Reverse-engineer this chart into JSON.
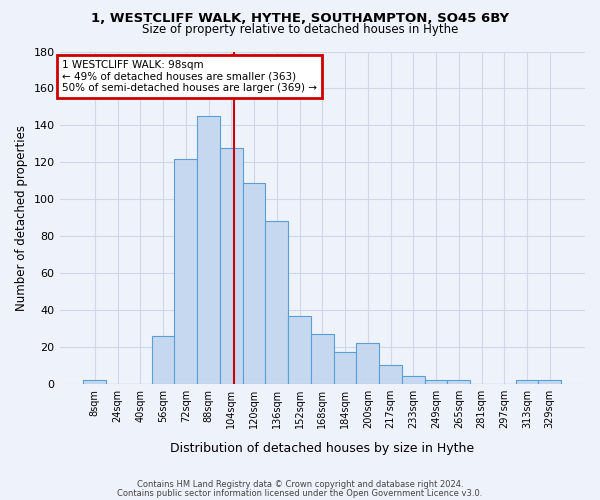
{
  "title": "1, WESTCLIFF WALK, HYTHE, SOUTHAMPTON, SO45 6BY",
  "subtitle": "Size of property relative to detached houses in Hythe",
  "xlabel": "Distribution of detached houses by size in Hythe",
  "ylabel": "Number of detached properties",
  "bin_labels": [
    "8sqm",
    "24sqm",
    "40sqm",
    "56sqm",
    "72sqm",
    "88sqm",
    "104sqm",
    "120sqm",
    "136sqm",
    "152sqm",
    "168sqm",
    "184sqm",
    "200sqm",
    "217sqm",
    "233sqm",
    "249sqm",
    "265sqm",
    "281sqm",
    "297sqm",
    "313sqm",
    "329sqm"
  ],
  "bin_values": [
    2,
    0,
    0,
    26,
    122,
    145,
    128,
    109,
    88,
    37,
    27,
    17,
    22,
    10,
    4,
    2,
    2,
    0,
    0,
    2,
    2
  ],
  "bar_color": "#c5d8f0",
  "bar_edge_color": "#5a9fd4",
  "red_line_color": "#cc0000",
  "annotation_box_color": "#cc0000",
  "annotation_line1": "1 WESTCLIFF WALK: 98sqm",
  "annotation_line2": "← 49% of detached houses are smaller (363)",
  "annotation_line3": "50% of semi-detached houses are larger (369) →",
  "ylim": [
    0,
    180
  ],
  "yticks": [
    0,
    20,
    40,
    60,
    80,
    100,
    120,
    140,
    160,
    180
  ],
  "footnote1": "Contains HM Land Registry data © Crown copyright and database right 2024.",
  "footnote2": "Contains public sector information licensed under the Open Government Licence v3.0.",
  "background_color": "#eef2fa",
  "grid_color": "#d0d8e8"
}
